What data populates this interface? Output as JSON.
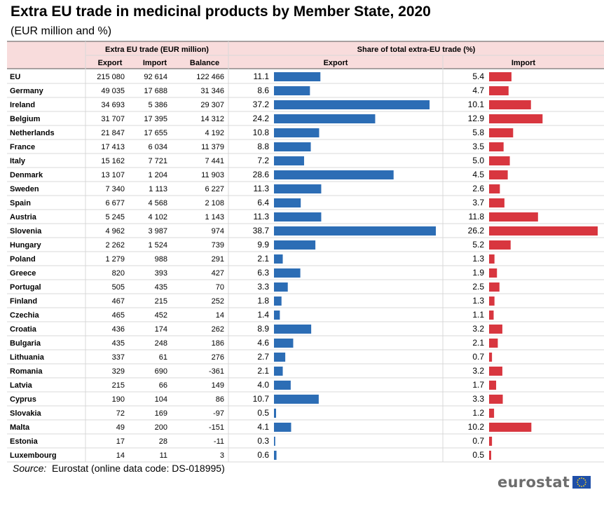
{
  "title": "Extra EU trade in medicinal products by Member State, 2020",
  "subtitle": "(EUR million and %)",
  "source": {
    "label": "Source:",
    "text": "Eurostat (online data code: DS-018995)"
  },
  "logo": {
    "text": "eurostat",
    "flag_icon": "eu-flag-icon"
  },
  "colors": {
    "header_bg": "#f8dcdc",
    "export_bar": "#2c6db5",
    "import_bar": "#d8363f",
    "grid": "#d9d9d9",
    "border": "#555555"
  },
  "chart_data": {
    "type": "table",
    "title": "Extra EU trade in medicinal products by Member State, 2020",
    "units": "EUR million and %",
    "group_headers": [
      "Extra EU trade (EUR million)",
      "Share of total extra-EU trade (%)"
    ],
    "columns": [
      "Export",
      "Import",
      "Balance",
      "Export",
      "Import"
    ],
    "share_axes": {
      "export_xlim": [
        0,
        40
      ],
      "import_xlim": [
        0,
        27
      ]
    },
    "rows": [
      {
        "country": "EU",
        "export": "215 080",
        "import": "92 614",
        "balance": "122 466",
        "export_share": 11.1,
        "import_share": 5.4
      },
      {
        "country": "Germany",
        "export": "49 035",
        "import": "17 688",
        "balance": "31 346",
        "export_share": 8.6,
        "import_share": 4.7
      },
      {
        "country": "Ireland",
        "export": "34 693",
        "import": "5 386",
        "balance": "29 307",
        "export_share": 37.2,
        "import_share": 10.1
      },
      {
        "country": "Belgium",
        "export": "31 707",
        "import": "17 395",
        "balance": "14 312",
        "export_share": 24.2,
        "import_share": 12.9
      },
      {
        "country": "Netherlands",
        "export": "21 847",
        "import": "17 655",
        "balance": "4 192",
        "export_share": 10.8,
        "import_share": 5.8
      },
      {
        "country": "France",
        "export": "17 413",
        "import": "6 034",
        "balance": "11 379",
        "export_share": 8.8,
        "import_share": 3.5
      },
      {
        "country": "Italy",
        "export": "15 162",
        "import": "7 721",
        "balance": "7 441",
        "export_share": 7.2,
        "import_share": 5.0
      },
      {
        "country": "Denmark",
        "export": "13 107",
        "import": "1 204",
        "balance": "11 903",
        "export_share": 28.6,
        "import_share": 4.5
      },
      {
        "country": "Sweden",
        "export": "7 340",
        "import": "1 113",
        "balance": "6 227",
        "export_share": 11.3,
        "import_share": 2.6
      },
      {
        "country": "Spain",
        "export": "6 677",
        "import": "4 568",
        "balance": "2 108",
        "export_share": 6.4,
        "import_share": 3.7
      },
      {
        "country": "Austria",
        "export": "5 245",
        "import": "4 102",
        "balance": "1 143",
        "export_share": 11.3,
        "import_share": 11.8
      },
      {
        "country": "Slovenia",
        "export": "4 962",
        "import": "3 987",
        "balance": "974",
        "export_share": 38.7,
        "import_share": 26.2
      },
      {
        "country": "Hungary",
        "export": "2 262",
        "import": "1 524",
        "balance": "739",
        "export_share": 9.9,
        "import_share": 5.2
      },
      {
        "country": "Poland",
        "export": "1 279",
        "import": "988",
        "balance": "291",
        "export_share": 2.1,
        "import_share": 1.3
      },
      {
        "country": "Greece",
        "export": "820",
        "import": "393",
        "balance": "427",
        "export_share": 6.3,
        "import_share": 1.9
      },
      {
        "country": "Portugal",
        "export": "505",
        "import": "435",
        "balance": "70",
        "export_share": 3.3,
        "import_share": 2.5
      },
      {
        "country": "Finland",
        "export": "467",
        "import": "215",
        "balance": "252",
        "export_share": 1.8,
        "import_share": 1.3
      },
      {
        "country": "Czechia",
        "export": "465",
        "import": "452",
        "balance": "14",
        "export_share": 1.4,
        "import_share": 1.1
      },
      {
        "country": "Croatia",
        "export": "436",
        "import": "174",
        "balance": "262",
        "export_share": 8.9,
        "import_share": 3.2
      },
      {
        "country": "Bulgaria",
        "export": "435",
        "import": "248",
        "balance": "186",
        "export_share": 4.6,
        "import_share": 2.1
      },
      {
        "country": "Lithuania",
        "export": "337",
        "import": "61",
        "balance": "276",
        "export_share": 2.7,
        "import_share": 0.7
      },
      {
        "country": "Romania",
        "export": "329",
        "import": "690",
        "balance": "-361",
        "export_share": 2.1,
        "import_share": 3.2
      },
      {
        "country": "Latvia",
        "export": "215",
        "import": "66",
        "balance": "149",
        "export_share": 4.0,
        "import_share": 1.7
      },
      {
        "country": "Cyprus",
        "export": "190",
        "import": "104",
        "balance": "86",
        "export_share": 10.7,
        "import_share": 3.3
      },
      {
        "country": "Slovakia",
        "export": "72",
        "import": "169",
        "balance": "-97",
        "export_share": 0.5,
        "import_share": 1.2
      },
      {
        "country": "Malta",
        "export": "49",
        "import": "200",
        "balance": "-151",
        "export_share": 4.1,
        "import_share": 10.2
      },
      {
        "country": "Estonia",
        "export": "17",
        "import": "28",
        "balance": "-11",
        "export_share": 0.3,
        "import_share": 0.7
      },
      {
        "country": "Luxembourg",
        "export": "14",
        "import": "11",
        "balance": "3",
        "export_share": 0.6,
        "import_share": 0.5
      }
    ]
  }
}
